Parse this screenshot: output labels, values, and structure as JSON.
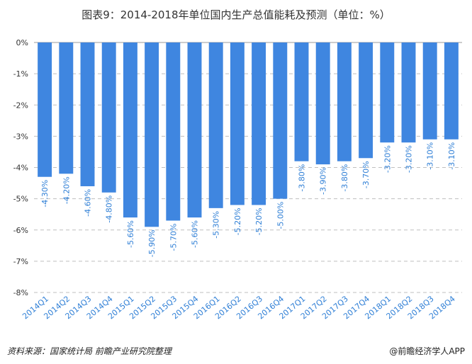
{
  "title": "图表9：2014-2018年单位国内生产总值能耗及预测（单位：%）",
  "source": "资料来源：国家统计局 前瞻产业研究院整理",
  "brand": "@前瞻经济学人APP",
  "colors": {
    "bar": "#3F86E0",
    "label": "#2F7FD6",
    "axis": "#333333",
    "grid": "#BFBFBF"
  },
  "chart_data": {
    "type": "bar",
    "title": "图表9：2014-2018年单位国内生产总值能耗及预测（单位：%）",
    "xlabel": "",
    "ylabel": "",
    "ylim": [
      -8,
      0
    ],
    "yticks": [
      0,
      -1,
      -2,
      -3,
      -4,
      -5,
      -6,
      -7,
      -8
    ],
    "ytick_labels": [
      "0%",
      "-1%",
      "-2%",
      "-3%",
      "-4%",
      "-5%",
      "-6%",
      "-7%",
      "-8%"
    ],
    "categories": [
      "2014Q1",
      "2014Q2",
      "2014Q3",
      "2014Q4",
      "2015Q1",
      "2015Q2",
      "2015Q3",
      "2015Q4",
      "2016Q1",
      "2016Q2",
      "2016Q3",
      "2016Q4",
      "2017Q1",
      "2017Q2",
      "2017Q3",
      "2017Q4",
      "2018Q1",
      "2018Q2",
      "2018Q3",
      "2018Q4"
    ],
    "values": [
      -4.3,
      -4.2,
      -4.6,
      -4.8,
      -5.6,
      -5.9,
      -5.7,
      -5.6,
      -5.3,
      -5.2,
      -5.2,
      -5.0,
      -3.8,
      -3.9,
      -3.8,
      -3.7,
      -3.2,
      -3.2,
      -3.1,
      -3.1
    ],
    "value_labels": [
      "-4.30%",
      "-4.20%",
      "-4.60%",
      "-4.80%",
      "-5.60%",
      "-5.90%",
      "-5.70%",
      "-5.60%",
      "-5.30%",
      "-5.20%",
      "-5.20%",
      "-5.00%",
      "-3.80%",
      "-3.90%",
      "-3.80%",
      "-3.70%",
      "-3.20%",
      "-3.20%",
      "-3.10%",
      "-3.10%"
    ],
    "grid": true
  }
}
